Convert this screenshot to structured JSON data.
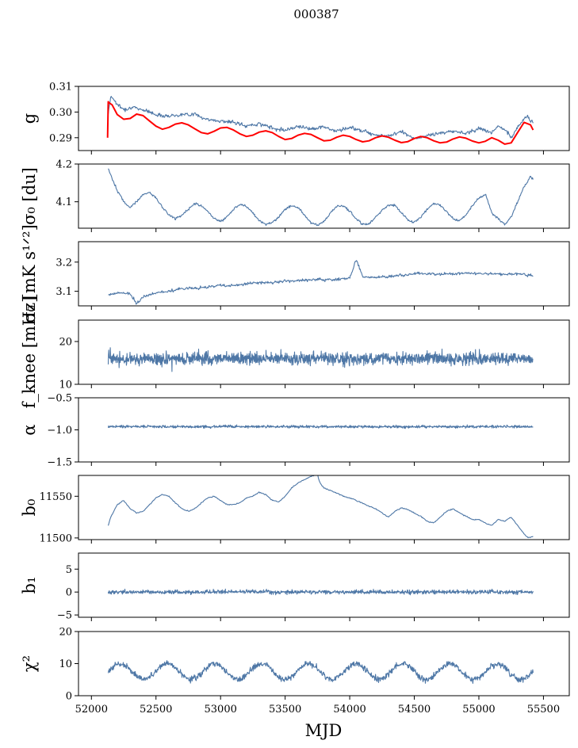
{
  "figure": {
    "title": "000387",
    "xlabel": "MJD",
    "xlim": [
      51900,
      55700
    ],
    "xticks": [
      52000,
      52500,
      53000,
      53500,
      54000,
      54500,
      55000,
      55500
    ],
    "colors": {
      "series": "#4e77a6",
      "model": "#ff0000"
    }
  },
  "chart_data": [
    {
      "type": "line",
      "key": "g",
      "ylabel": "g",
      "ylim": [
        0.285,
        0.31
      ],
      "yticks": [
        0.29,
        0.3,
        0.31
      ],
      "ytick_labels": [
        "0.29",
        "0.30",
        "0.31"
      ],
      "series": [
        {
          "name": "g",
          "color": "#4e77a6",
          "x": [
            52130,
            52150,
            52170,
            52200,
            52250,
            52300,
            52350,
            52400,
            52450,
            52500,
            52600,
            52700,
            52800,
            52900,
            53000,
            53100,
            53200,
            53300,
            53400,
            53500,
            53600,
            53700,
            53800,
            53900,
            54000,
            54100,
            54200,
            54300,
            54400,
            54500,
            54600,
            54700,
            54800,
            54900,
            55000,
            55050,
            55100,
            55150,
            55200,
            55250,
            55300,
            55350,
            55380,
            55400,
            55420
          ],
          "y": [
            0.2995,
            0.3062,
            0.3052,
            0.303,
            0.301,
            0.3017,
            0.3015,
            0.301,
            0.3,
            0.299,
            0.2985,
            0.299,
            0.2992,
            0.297,
            0.2965,
            0.296,
            0.2945,
            0.2955,
            0.2938,
            0.293,
            0.2945,
            0.2935,
            0.2942,
            0.2925,
            0.294,
            0.2928,
            0.2912,
            0.2905,
            0.2925,
            0.2895,
            0.2908,
            0.2918,
            0.2925,
            0.2918,
            0.2935,
            0.293,
            0.292,
            0.2945,
            0.293,
            0.29,
            0.294,
            0.2975,
            0.2985,
            0.2965,
            0.296
          ]
        },
        {
          "name": "model",
          "color": "#ff0000",
          "x": [
            52125,
            52130,
            52140,
            52160,
            52200,
            52250,
            52300,
            52350,
            52400,
            52450,
            52500,
            52550,
            52600,
            52650,
            52700,
            52750,
            52800,
            52850,
            52900,
            52950,
            53000,
            53050,
            53100,
            53150,
            53200,
            53250,
            53300,
            53350,
            53400,
            53450,
            53500,
            53550,
            53600,
            53650,
            53700,
            53750,
            53800,
            53850,
            53900,
            53950,
            54000,
            54050,
            54100,
            54150,
            54200,
            54250,
            54300,
            54350,
            54400,
            54450,
            54500,
            54550,
            54600,
            54650,
            54700,
            54750,
            54800,
            54850,
            54900,
            54950,
            55000,
            55050,
            55100,
            55150,
            55200,
            55250,
            55300,
            55350,
            55400,
            55420
          ],
          "y": [
            0.29,
            0.304,
            0.3035,
            0.3028,
            0.299,
            0.2972,
            0.2975,
            0.2992,
            0.2986,
            0.2965,
            0.2945,
            0.2933,
            0.294,
            0.2953,
            0.2958,
            0.295,
            0.2935,
            0.292,
            0.2915,
            0.2925,
            0.2938,
            0.294,
            0.293,
            0.2915,
            0.2905,
            0.291,
            0.2922,
            0.2927,
            0.292,
            0.2905,
            0.2893,
            0.2897,
            0.291,
            0.2917,
            0.2913,
            0.29,
            0.2888,
            0.289,
            0.2902,
            0.291,
            0.2905,
            0.2893,
            0.2884,
            0.2888,
            0.29,
            0.2907,
            0.2902,
            0.289,
            0.2881,
            0.2885,
            0.2897,
            0.2905,
            0.29,
            0.2888,
            0.288,
            0.2883,
            0.2895,
            0.2903,
            0.2898,
            0.2887,
            0.288,
            0.2886,
            0.29,
            0.289,
            0.2875,
            0.288,
            0.292,
            0.296,
            0.295,
            0.293
          ]
        }
      ]
    },
    {
      "type": "line",
      "key": "sigma0",
      "ylabel": "σ₀ [du]",
      "ylim": [
        4.03,
        4.2
      ],
      "yticks": [
        4.1,
        4.2
      ],
      "ytick_labels": [
        "4.1",
        "4.2"
      ],
      "series": [
        {
          "name": "sigma0",
          "color": "#4e77a6",
          "x": [
            52130,
            52150,
            52200,
            52250,
            52300,
            52350,
            52400,
            52450,
            52500,
            52550,
            52600,
            52650,
            52700,
            52750,
            52800,
            52850,
            52900,
            52950,
            53000,
            53050,
            53100,
            53150,
            53200,
            53250,
            53300,
            53350,
            53400,
            53450,
            53500,
            53550,
            53600,
            53650,
            53700,
            53750,
            53800,
            53850,
            53900,
            53950,
            54000,
            54050,
            54100,
            54150,
            54200,
            54250,
            54300,
            54350,
            54400,
            54450,
            54500,
            54550,
            54600,
            54650,
            54700,
            54750,
            54800,
            54850,
            54900,
            54950,
            55000,
            55050,
            55100,
            55150,
            55200,
            55250,
            55300,
            55350,
            55400,
            55420
          ],
          "y": [
            4.19,
            4.17,
            4.13,
            4.1,
            4.085,
            4.1,
            4.12,
            4.125,
            4.11,
            4.085,
            4.065,
            4.055,
            4.065,
            4.08,
            4.095,
            4.09,
            4.075,
            4.055,
            4.048,
            4.06,
            4.08,
            4.095,
            4.088,
            4.07,
            4.05,
            4.04,
            4.045,
            4.06,
            4.08,
            4.09,
            4.085,
            4.065,
            4.045,
            4.038,
            4.048,
            4.07,
            4.088,
            4.09,
            4.075,
            4.055,
            4.04,
            4.042,
            4.058,
            4.078,
            4.092,
            4.09,
            4.072,
            4.052,
            4.045,
            4.06,
            4.08,
            4.095,
            4.092,
            4.075,
            4.055,
            4.05,
            4.065,
            4.09,
            4.11,
            4.12,
            4.07,
            4.055,
            4.04,
            4.06,
            4.1,
            4.14,
            4.165,
            4.16
          ]
        }
      ]
    },
    {
      "type": "line",
      "key": "sigma0_white",
      "ylabel": "σ₀ [mK s¹ᐟ²]",
      "ylim": [
        3.05,
        3.27
      ],
      "yticks": [
        3.1,
        3.2
      ],
      "ytick_labels": [
        "3.1",
        "3.2"
      ],
      "series": [
        {
          "name": "noise",
          "color": "#4e77a6",
          "x": [
            52130,
            52200,
            52300,
            52350,
            52400,
            52500,
            52600,
            52700,
            52800,
            52900,
            53000,
            53100,
            53200,
            53300,
            53400,
            53500,
            53600,
            53700,
            53800,
            53900,
            54000,
            54050,
            54100,
            54200,
            54300,
            54400,
            54500,
            54600,
            54700,
            54800,
            54900,
            55000,
            55100,
            55200,
            55300,
            55400,
            55420
          ],
          "y": [
            3.09,
            3.095,
            3.09,
            3.06,
            3.08,
            3.095,
            3.1,
            3.11,
            3.11,
            3.115,
            3.12,
            3.118,
            3.125,
            3.13,
            3.13,
            3.135,
            3.135,
            3.14,
            3.14,
            3.14,
            3.145,
            3.21,
            3.15,
            3.148,
            3.15,
            3.155,
            3.16,
            3.16,
            3.158,
            3.16,
            3.162,
            3.16,
            3.16,
            3.158,
            3.16,
            3.155,
            3.152
          ]
        }
      ]
    },
    {
      "type": "line",
      "key": "fknee",
      "ylabel": "f_knee [mHz]",
      "ylim": [
        10,
        25
      ],
      "yticks": [
        10,
        20
      ],
      "ytick_labels": [
        "10",
        "20"
      ],
      "series": [
        {
          "name": "fknee",
          "color": "#4e77a6",
          "x": [
            52130,
            55420
          ],
          "y": [
            16.0,
            16.0
          ]
        }
      ]
    },
    {
      "type": "line",
      "key": "alpha",
      "ylabel": "α",
      "ylim": [
        -1.5,
        -0.5
      ],
      "yticks": [
        -1.5,
        -1.0,
        -0.5
      ],
      "ytick_labels": [
        "−1.5",
        "−1.0",
        "−0.5"
      ],
      "series": [
        {
          "name": "alpha",
          "color": "#4e77a6",
          "x": [
            52130,
            55420
          ],
          "y": [
            -0.95,
            -0.95
          ]
        }
      ]
    },
    {
      "type": "line",
      "key": "b0",
      "ylabel": "b₀",
      "ylim": [
        11498,
        11575
      ],
      "yticks": [
        11500,
        11550
      ],
      "ytick_labels": [
        "11500",
        "11550"
      ],
      "series": [
        {
          "name": "b0",
          "color": "#4e77a6",
          "x": [
            52130,
            52150,
            52200,
            52250,
            52300,
            52350,
            52400,
            52450,
            52500,
            52550,
            52600,
            52650,
            52700,
            52750,
            52800,
            52850,
            52900,
            52950,
            53000,
            53050,
            53100,
            53150,
            53200,
            53250,
            53300,
            53350,
            53400,
            53450,
            53500,
            53550,
            53600,
            53650,
            53700,
            53750,
            53770,
            53800,
            53850,
            53900,
            53950,
            54000,
            54050,
            54100,
            54150,
            54200,
            54250,
            54300,
            54350,
            54400,
            54450,
            54500,
            54550,
            54600,
            54650,
            54700,
            54750,
            54800,
            54850,
            54900,
            54950,
            55000,
            55050,
            55100,
            55150,
            55200,
            55250,
            55300,
            55350,
            55380,
            55420
          ],
          "y": [
            11515,
            11525,
            11540,
            11545,
            11535,
            11530,
            11532,
            11540,
            11548,
            11552,
            11550,
            11542,
            11535,
            11532,
            11535,
            11542,
            11548,
            11550,
            11545,
            11540,
            11540,
            11542,
            11548,
            11550,
            11555,
            11552,
            11545,
            11543,
            11550,
            11560,
            11566,
            11570,
            11574,
            11576,
            11566,
            11560,
            11557,
            11554,
            11550,
            11548,
            11545,
            11542,
            11538,
            11535,
            11530,
            11525,
            11532,
            11536,
            11534,
            11530,
            11526,
            11520,
            11518,
            11525,
            11532,
            11535,
            11530,
            11526,
            11522,
            11522,
            11518,
            11515,
            11522,
            11520,
            11525,
            11515,
            11505,
            11500,
            11502
          ]
        }
      ]
    },
    {
      "type": "line",
      "key": "b1",
      "ylabel": "b₁",
      "ylim": [
        -5.5,
        8.5
      ],
      "yticks": [
        -5,
        0,
        5
      ],
      "ytick_labels": [
        "−5",
        "0",
        "5"
      ],
      "series": [
        {
          "name": "b1",
          "color": "#4e77a6",
          "x": [
            52130,
            55420
          ],
          "y": [
            0.0,
            0.0
          ]
        }
      ]
    },
    {
      "type": "line",
      "key": "chi2",
      "ylabel": "χ²",
      "ylim": [
        0,
        20
      ],
      "yticks": [
        0,
        10,
        20
      ],
      "ytick_labels": [
        "0",
        "10",
        "20"
      ],
      "series": [
        {
          "name": "chi2",
          "color": "#4e77a6",
          "x": [
            52130,
            55420
          ],
          "y": [
            7.5,
            7.5
          ]
        }
      ]
    }
  ]
}
